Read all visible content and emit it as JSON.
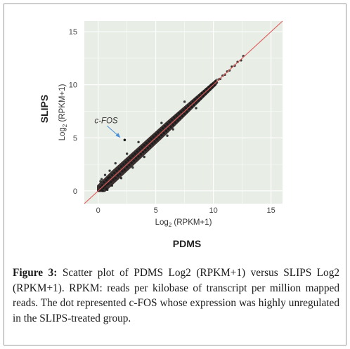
{
  "chart_data": {
    "type": "scatter",
    "xlabel": "Log₂ (RPKM+1)",
    "ylabel": "Log₂ (RPKM+1)",
    "x_title": "PDMS",
    "y_title": "SLIPS",
    "xlim": [
      -1.2,
      16.0
    ],
    "ylim": [
      -1.2,
      16.0
    ],
    "xticks": [
      0,
      5,
      10,
      15
    ],
    "yticks": [
      0,
      5,
      10,
      15
    ],
    "grid": true,
    "reference_line": {
      "slope": 1,
      "intercept": 0,
      "color": "#e05a5a"
    },
    "points_description_series": "genes",
    "points": [
      [
        0.1,
        0.05
      ],
      [
        0.2,
        0.35
      ],
      [
        0.3,
        0.1
      ],
      [
        0.35,
        0.55
      ],
      [
        0.45,
        0.3
      ],
      [
        0.5,
        0.8
      ],
      [
        0.6,
        0.45
      ],
      [
        0.7,
        1.0
      ],
      [
        0.75,
        0.6
      ],
      [
        0.85,
        1.2
      ],
      [
        0.9,
        0.7
      ],
      [
        1.0,
        1.3
      ],
      [
        1.1,
        0.85
      ],
      [
        1.2,
        1.5
      ],
      [
        1.3,
        1.05
      ],
      [
        1.4,
        1.7
      ],
      [
        1.5,
        1.2
      ],
      [
        1.6,
        1.9
      ],
      [
        1.7,
        1.45
      ],
      [
        1.8,
        2.1
      ],
      [
        1.9,
        1.6
      ],
      [
        2.0,
        2.3
      ],
      [
        2.1,
        1.85
      ],
      [
        2.2,
        2.5
      ],
      [
        2.3,
        2.0
      ],
      [
        2.4,
        2.7
      ],
      [
        2.5,
        2.25
      ],
      [
        2.6,
        2.9
      ],
      [
        2.7,
        2.45
      ],
      [
        2.8,
        3.1
      ],
      [
        2.9,
        2.65
      ],
      [
        3.0,
        3.3
      ],
      [
        3.1,
        2.85
      ],
      [
        3.2,
        3.5
      ],
      [
        3.3,
        3.05
      ],
      [
        3.4,
        3.7
      ],
      [
        3.5,
        3.25
      ],
      [
        3.6,
        3.9
      ],
      [
        3.7,
        3.45
      ],
      [
        3.8,
        4.1
      ],
      [
        3.9,
        3.65
      ],
      [
        4.0,
        4.3
      ],
      [
        4.1,
        3.85
      ],
      [
        4.2,
        4.5
      ],
      [
        4.3,
        4.05
      ],
      [
        4.4,
        4.7
      ],
      [
        4.5,
        4.25
      ],
      [
        4.6,
        4.9
      ],
      [
        4.7,
        4.45
      ],
      [
        4.8,
        5.1
      ],
      [
        4.9,
        4.65
      ],
      [
        5.0,
        5.3
      ],
      [
        5.1,
        4.85
      ],
      [
        5.2,
        5.5
      ],
      [
        5.3,
        5.05
      ],
      [
        5.4,
        5.7
      ],
      [
        5.5,
        5.25
      ],
      [
        5.6,
        5.9
      ],
      [
        5.7,
        5.45
      ],
      [
        5.8,
        6.1
      ],
      [
        5.9,
        5.65
      ],
      [
        6.0,
        6.3
      ],
      [
        6.1,
        5.85
      ],
      [
        6.2,
        6.5
      ],
      [
        6.3,
        6.05
      ],
      [
        6.4,
        6.7
      ],
      [
        6.5,
        6.25
      ],
      [
        6.6,
        6.9
      ],
      [
        6.7,
        6.45
      ],
      [
        6.8,
        7.1
      ],
      [
        6.9,
        6.65
      ],
      [
        7.0,
        7.3
      ],
      [
        7.1,
        6.85
      ],
      [
        7.2,
        7.45
      ],
      [
        7.3,
        7.05
      ],
      [
        7.4,
        7.6
      ],
      [
        7.5,
        7.25
      ],
      [
        7.6,
        7.8
      ],
      [
        7.7,
        7.45
      ],
      [
        7.8,
        8.0
      ],
      [
        7.9,
        7.7
      ],
      [
        8.0,
        8.2
      ],
      [
        8.1,
        7.9
      ],
      [
        8.2,
        8.4
      ],
      [
        8.3,
        8.1
      ],
      [
        8.4,
        8.6
      ],
      [
        8.5,
        8.3
      ],
      [
        8.6,
        8.8
      ],
      [
        8.7,
        8.5
      ],
      [
        8.8,
        9.0
      ],
      [
        8.9,
        8.7
      ],
      [
        9.0,
        9.2
      ],
      [
        9.1,
        8.95
      ],
      [
        9.2,
        9.4
      ],
      [
        9.3,
        9.15
      ],
      [
        9.4,
        9.6
      ],
      [
        9.5,
        9.35
      ],
      [
        9.6,
        9.8
      ],
      [
        9.7,
        9.55
      ],
      [
        9.8,
        10.0
      ],
      [
        9.9,
        9.75
      ],
      [
        10.0,
        10.1
      ],
      [
        10.1,
        9.95
      ],
      [
        10.2,
        10.35
      ],
      [
        10.3,
        10.2
      ],
      [
        10.45,
        10.5
      ],
      [
        10.6,
        10.55
      ],
      [
        10.8,
        10.85
      ],
      [
        11.0,
        10.95
      ],
      [
        11.2,
        11.25
      ],
      [
        11.4,
        11.35
      ],
      [
        11.6,
        11.7
      ],
      [
        11.85,
        11.8
      ],
      [
        12.1,
        12.15
      ],
      [
        12.4,
        12.3
      ],
      [
        12.6,
        12.7
      ],
      [
        0.3,
        1.1
      ],
      [
        0.6,
        1.5
      ],
      [
        1.0,
        1.9
      ],
      [
        0.4,
        0.0
      ],
      [
        0.7,
        0.2
      ],
      [
        1.5,
        2.6
      ],
      [
        2.5,
        3.5
      ],
      [
        3.5,
        4.6
      ],
      [
        3.0,
        2.2
      ],
      [
        4.0,
        3.2
      ],
      [
        6.0,
        5.2
      ],
      [
        7.5,
        8.4
      ],
      [
        8.5,
        7.8
      ],
      [
        1.2,
        0.5
      ],
      [
        2.0,
        1.2
      ],
      [
        0.2,
        0.9
      ],
      [
        0.8,
        0.1
      ],
      [
        5.5,
        6.4
      ],
      [
        6.5,
        5.8
      ]
    ],
    "highlight": {
      "label": "c-FOS",
      "x": 2.3,
      "y": 4.8
    }
  },
  "caption": {
    "figure_label": "Figure 3:",
    "text": " Scatter plot of PDMS Log2 (RPKM+1) versus SLIPS Log2 (RPKM+1). RPKM: reads per kilobase of transcript per million mapped reads. The dot represented c-FOS whose expression was highly unregulated in the SLIPS-treated group."
  },
  "colors": {
    "panel": "#e8ede6",
    "grid": "#ffffff",
    "points": "#1a1a1a",
    "band": "#2a1f1f",
    "arrow": "#4a8fd8"
  }
}
